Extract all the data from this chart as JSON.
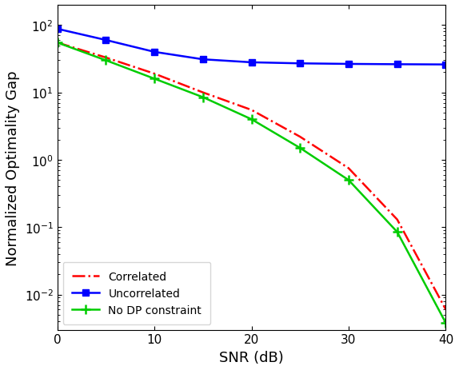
{
  "snr": [
    0,
    5,
    10,
    15,
    20,
    25,
    30,
    35,
    40
  ],
  "correlated": [
    55,
    33,
    19,
    10,
    5.5,
    2.2,
    0.75,
    0.13,
    0.006
  ],
  "uncorrelated": [
    88,
    60,
    40,
    31,
    28,
    27,
    26.5,
    26.2,
    26.0
  ],
  "no_dp": [
    55,
    30,
    16,
    8.5,
    4.0,
    1.5,
    0.5,
    0.085,
    0.0038
  ],
  "correlated_color": "#FF0000",
  "uncorrelated_color": "#0000FF",
  "no_dp_color": "#00CC00",
  "xlabel": "SNR (dB)",
  "ylabel": "Normalized Optimality Gap",
  "legend_labels": [
    "Correlated",
    "Uncorrelated",
    "No DP constraint"
  ],
  "xlim": [
    0,
    40
  ],
  "ylim_min": 0.003,
  "ylim_max": 200,
  "xticks": [
    0,
    10,
    20,
    30,
    40
  ],
  "figsize": [
    5.74,
    4.64
  ],
  "dpi": 100
}
